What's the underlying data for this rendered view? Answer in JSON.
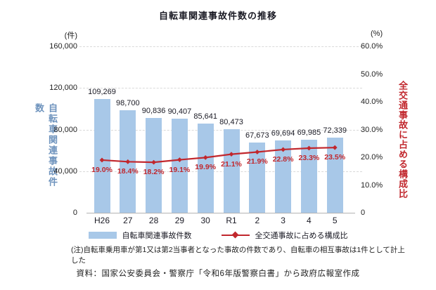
{
  "title": "自転車関連事故件数の推移",
  "chart_data": {
    "type": "combo",
    "title": "自転車関連事故件数の推移",
    "categories": [
      "H26",
      "27",
      "28",
      "29",
      "30",
      "R1",
      "2",
      "3",
      "4",
      "5"
    ],
    "series": [
      {
        "name": "自転車関連事故件数",
        "type": "bar",
        "axis": "left",
        "color": "#a8c8e8",
        "values": [
          109269,
          98700,
          90836,
          90407,
          85641,
          80473,
          67673,
          69694,
          69985,
          72339
        ],
        "labels": [
          "109,269",
          "98,700",
          "90,836",
          "90,407",
          "85,641",
          "80,473",
          "67,673",
          "69,694",
          "69,985",
          "72,339"
        ]
      },
      {
        "name": "全交通事故に占める構成比",
        "type": "line",
        "axis": "right",
        "color": "#c1272d",
        "values": [
          19.0,
          18.4,
          18.2,
          19.1,
          19.9,
          21.1,
          21.9,
          22.8,
          23.3,
          23.5
        ],
        "labels": [
          "19.0%",
          "18.4%",
          "18.2%",
          "19.1%",
          "19.9%",
          "21.1%",
          "21.9%",
          "22.8%",
          "23.3%",
          "23.5%"
        ]
      }
    ],
    "left_axis": {
      "unit": "(件)",
      "title": "自転車関連事故件数",
      "min": 0,
      "max": 160000,
      "tick_values": [
        160000,
        120000,
        80000,
        40000,
        0
      ],
      "tick_labels": [
        "160,000",
        "120,000",
        "80,000",
        "40,000",
        "0"
      ]
    },
    "right_axis": {
      "unit": "(%)",
      "title": "全交通事故に占める構成比",
      "min": 0,
      "max": 60,
      "tick_values": [
        60,
        50,
        40,
        30,
        20,
        10,
        0
      ],
      "tick_labels": [
        "60.0%",
        "50.0%",
        "40.0%",
        "30.0%",
        "20.0%",
        "10.0%",
        "0"
      ]
    },
    "grid": "dashed-horizontal",
    "legend_position": "bottom"
  },
  "legend": {
    "bar_label": "自転車関連事故件数",
    "line_label": "全交通事故に占める構成比"
  },
  "note": "(注)自転車乗用車が第1又は第2当事者となった事故の件数であり、自転車の相互事故は1件として計上した",
  "source": "資料：国家公安委員会・警察庁「令和6年版警察白書」から政府広報室作成"
}
